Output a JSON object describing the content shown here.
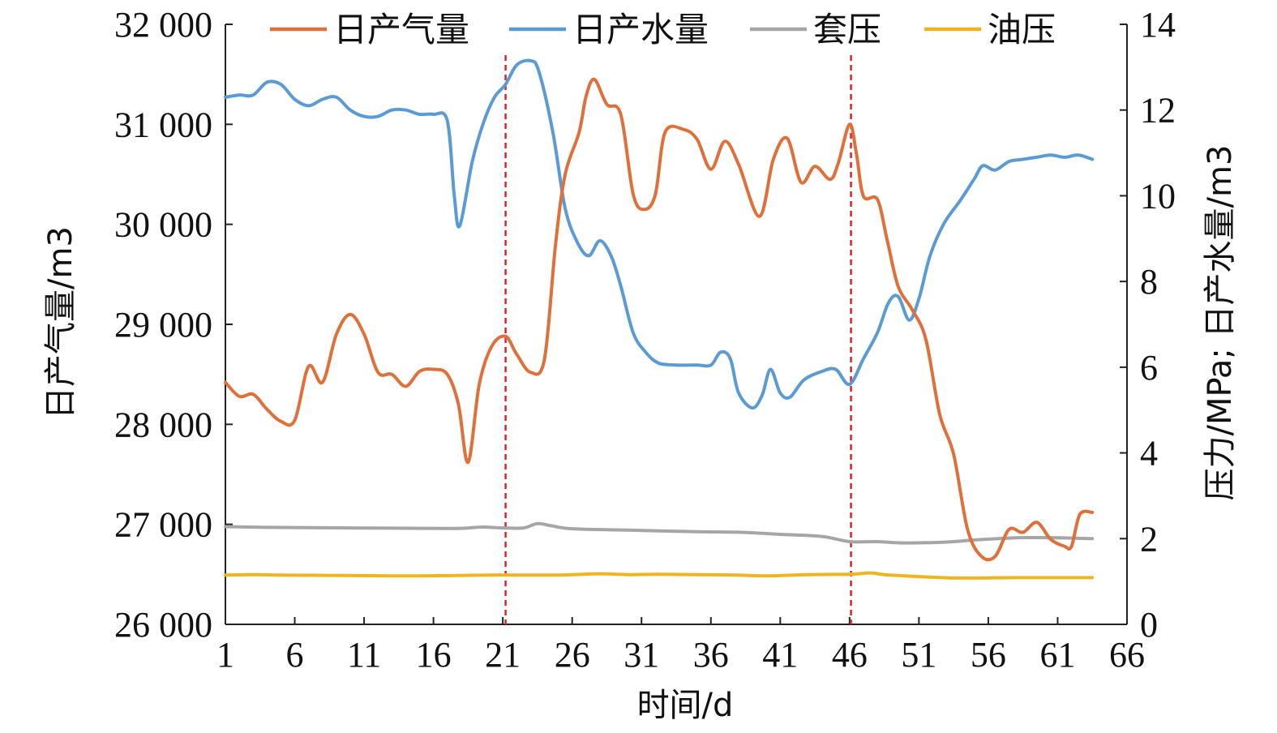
{
  "chart_data": {
    "type": "line",
    "xlabel": "时间/d",
    "ylabel_left": "日产气量/m3",
    "ylabel_right": "压力/MPa; 日产水量/m3",
    "xlim": [
      1,
      66
    ],
    "ylim_left": [
      26000,
      32000
    ],
    "ylim_right": [
      0,
      14
    ],
    "x_ticks": [
      1,
      6,
      11,
      16,
      21,
      26,
      31,
      36,
      41,
      46,
      51,
      56,
      61,
      66
    ],
    "y_ticks_left": [
      26000,
      27000,
      28000,
      29000,
      30000,
      31000,
      32000
    ],
    "y_ticks_right": [
      0,
      2,
      4,
      6,
      8,
      10,
      12,
      14
    ],
    "x_tick_labels": [
      "1",
      "6",
      "11",
      "16",
      "21",
      "26",
      "31",
      "36",
      "41",
      "46",
      "51",
      "56",
      "61",
      "66"
    ],
    "y_tick_labels_left": [
      "26 000",
      "27 000",
      "28 000",
      "29 000",
      "30 000",
      "31 000",
      "32 000"
    ],
    "y_tick_labels_right": [
      "0",
      "2",
      "4",
      "6",
      "8",
      "10",
      "12",
      "14"
    ],
    "vlines": [
      21.2,
      46.1
    ],
    "legend_position": "top",
    "grid": false,
    "series": [
      {
        "name": "日产气量",
        "axis": "left",
        "color": "#E0703A",
        "points": [
          [
            1,
            28420
          ],
          [
            2,
            28280
          ],
          [
            3,
            28300
          ],
          [
            4,
            28150
          ],
          [
            5,
            28030
          ],
          [
            6,
            28040
          ],
          [
            7,
            28580
          ],
          [
            8,
            28420
          ],
          [
            9,
            28900
          ],
          [
            10,
            29100
          ],
          [
            11,
            28900
          ],
          [
            12,
            28520
          ],
          [
            13,
            28500
          ],
          [
            14,
            28380
          ],
          [
            15,
            28530
          ],
          [
            16,
            28550
          ],
          [
            17,
            28500
          ],
          [
            17.8,
            28200
          ],
          [
            18.5,
            27620
          ],
          [
            19.3,
            28400
          ],
          [
            20.2,
            28780
          ],
          [
            21.2,
            28880
          ],
          [
            22,
            28700
          ],
          [
            23,
            28520
          ],
          [
            24,
            28650
          ],
          [
            24.8,
            29800
          ],
          [
            25.5,
            30500
          ],
          [
            26.5,
            30920
          ],
          [
            27,
            31280
          ],
          [
            27.6,
            31450
          ],
          [
            28.5,
            31200
          ],
          [
            29.5,
            31100
          ],
          [
            30.4,
            30300
          ],
          [
            31.2,
            30150
          ],
          [
            32,
            30300
          ],
          [
            32.7,
            30920
          ],
          [
            34,
            30950
          ],
          [
            35,
            30850
          ],
          [
            36,
            30550
          ],
          [
            37,
            30830
          ],
          [
            38,
            30600
          ],
          [
            39.5,
            30080
          ],
          [
            40.5,
            30650
          ],
          [
            41.5,
            30860
          ],
          [
            42.5,
            30420
          ],
          [
            43.5,
            30580
          ],
          [
            44.6,
            30450
          ],
          [
            45.2,
            30620
          ],
          [
            46,
            31000
          ],
          [
            46.5,
            30700
          ],
          [
            47,
            30280
          ],
          [
            48,
            30250
          ],
          [
            48.7,
            29850
          ],
          [
            49.5,
            29380
          ],
          [
            50.5,
            29150
          ],
          [
            51.5,
            28850
          ],
          [
            52.5,
            28100
          ],
          [
            53.5,
            27700
          ],
          [
            54.5,
            26950
          ],
          [
            55.5,
            26680
          ],
          [
            56.5,
            26680
          ],
          [
            57.5,
            26950
          ],
          [
            58.5,
            26920
          ],
          [
            59.5,
            27020
          ],
          [
            60.5,
            26850
          ],
          [
            61.5,
            26780
          ],
          [
            62,
            26780
          ],
          [
            62.6,
            27100
          ],
          [
            63.5,
            27120
          ]
        ]
      },
      {
        "name": "日产水量",
        "axis": "right",
        "color": "#5B9BD5",
        "points": [
          [
            1,
            12.3
          ],
          [
            2,
            12.35
          ],
          [
            3,
            12.35
          ],
          [
            4,
            12.65
          ],
          [
            5,
            12.6
          ],
          [
            6,
            12.25
          ],
          [
            7,
            12.1
          ],
          [
            8,
            12.25
          ],
          [
            9,
            12.3
          ],
          [
            10,
            12.0
          ],
          [
            11,
            11.85
          ],
          [
            12,
            11.85
          ],
          [
            13,
            12.0
          ],
          [
            14,
            12.0
          ],
          [
            15,
            11.9
          ],
          [
            16,
            11.9
          ],
          [
            17,
            11.75
          ],
          [
            17.5,
            10.0
          ],
          [
            17.9,
            9.3
          ],
          [
            18.8,
            10.8
          ],
          [
            19.6,
            11.7
          ],
          [
            20.4,
            12.3
          ],
          [
            21.2,
            12.6
          ],
          [
            22,
            13.05
          ],
          [
            23,
            13.15
          ],
          [
            23.6,
            12.9
          ],
          [
            24.6,
            11.5
          ],
          [
            25.5,
            9.7
          ],
          [
            26.4,
            8.9
          ],
          [
            27.2,
            8.6
          ],
          [
            28,
            8.95
          ],
          [
            28.8,
            8.6
          ],
          [
            29.5,
            7.9
          ],
          [
            30.4,
            6.8
          ],
          [
            31.3,
            6.35
          ],
          [
            32.2,
            6.1
          ],
          [
            33.5,
            6.05
          ],
          [
            35,
            6.05
          ],
          [
            36,
            6.05
          ],
          [
            36.7,
            6.35
          ],
          [
            37.4,
            6.2
          ],
          [
            38,
            5.4
          ],
          [
            39,
            5.05
          ],
          [
            39.7,
            5.35
          ],
          [
            40.3,
            5.95
          ],
          [
            41,
            5.4
          ],
          [
            41.7,
            5.3
          ],
          [
            42.7,
            5.7
          ],
          [
            44,
            5.9
          ],
          [
            45,
            5.95
          ],
          [
            46,
            5.6
          ],
          [
            47,
            6.2
          ],
          [
            48,
            6.8
          ],
          [
            48.8,
            7.5
          ],
          [
            49.5,
            7.65
          ],
          [
            50.3,
            7.1
          ],
          [
            51,
            7.6
          ],
          [
            51.8,
            8.6
          ],
          [
            52.8,
            9.35
          ],
          [
            54,
            9.9
          ],
          [
            55,
            10.4
          ],
          [
            55.6,
            10.7
          ],
          [
            56.5,
            10.6
          ],
          [
            57.5,
            10.8
          ],
          [
            58.5,
            10.85
          ],
          [
            59.5,
            10.9
          ],
          [
            60.5,
            10.95
          ],
          [
            61.5,
            10.9
          ],
          [
            62.5,
            10.95
          ],
          [
            63.5,
            10.85
          ]
        ]
      },
      {
        "name": "套压",
        "axis": "right",
        "color": "#A6A6A6",
        "points": [
          [
            1,
            2.28
          ],
          [
            5,
            2.26
          ],
          [
            10,
            2.25
          ],
          [
            15,
            2.24
          ],
          [
            18,
            2.24
          ],
          [
            19.5,
            2.27
          ],
          [
            21,
            2.25
          ],
          [
            22.5,
            2.25
          ],
          [
            23.5,
            2.35
          ],
          [
            24.5,
            2.3
          ],
          [
            26,
            2.23
          ],
          [
            30,
            2.2
          ],
          [
            35,
            2.16
          ],
          [
            38,
            2.15
          ],
          [
            41,
            2.1
          ],
          [
            44,
            2.05
          ],
          [
            46,
            1.93
          ],
          [
            48,
            1.93
          ],
          [
            50,
            1.9
          ],
          [
            53,
            1.92
          ],
          [
            55,
            1.97
          ],
          [
            58,
            2.02
          ],
          [
            61,
            2.02
          ],
          [
            63.5,
            2.0
          ]
        ]
      },
      {
        "name": "油压",
        "axis": "right",
        "color": "#EFB521",
        "points": [
          [
            1,
            1.15
          ],
          [
            3,
            1.16
          ],
          [
            5,
            1.15
          ],
          [
            10,
            1.14
          ],
          [
            15,
            1.13
          ],
          [
            20,
            1.15
          ],
          [
            25,
            1.15
          ],
          [
            28,
            1.18
          ],
          [
            30,
            1.16
          ],
          [
            32,
            1.17
          ],
          [
            35,
            1.16
          ],
          [
            38,
            1.15
          ],
          [
            40,
            1.13
          ],
          [
            43,
            1.16
          ],
          [
            46,
            1.17
          ],
          [
            47.5,
            1.2
          ],
          [
            48.5,
            1.16
          ],
          [
            50,
            1.13
          ],
          [
            52,
            1.1
          ],
          [
            54,
            1.08
          ],
          [
            58,
            1.09
          ],
          [
            63.5,
            1.09
          ]
        ]
      }
    ]
  }
}
